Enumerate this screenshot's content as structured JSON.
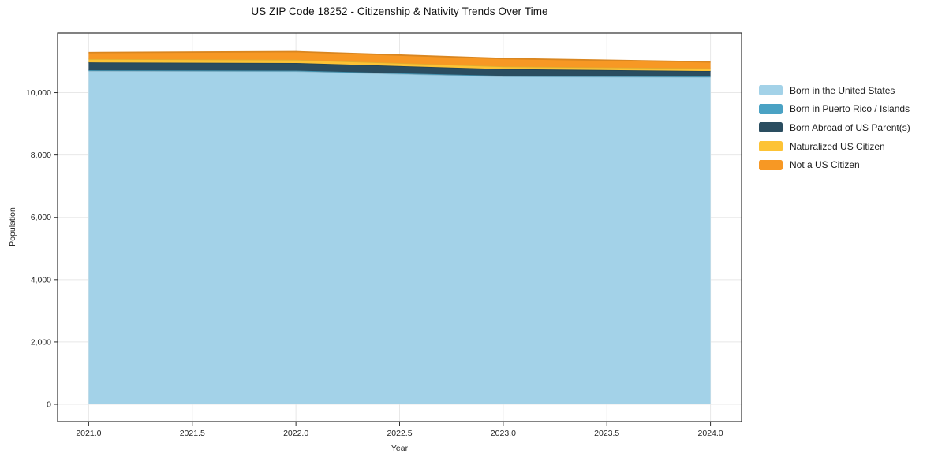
{
  "title": "US ZIP Code 18252 - Citizenship & Nativity Trends Over Time",
  "colors": {
    "background": "#ffffff",
    "grid": "#e8e8e8",
    "spine": "#2e2e2e",
    "tick": "#2e2e2e",
    "tick_label": "#262626",
    "title_text": "#111111"
  },
  "chart_data": {
    "type": "area",
    "stacked": true,
    "title": "US ZIP Code 18252 - Citizenship & Nativity Trends Over Time",
    "xlabel": "Year",
    "ylabel": "Population",
    "x": [
      2021,
      2022,
      2023,
      2024
    ],
    "series": [
      {
        "name": "Born in the United States",
        "color": "#a3d2e8",
        "values": [
          10700,
          10690,
          10520,
          10500
        ]
      },
      {
        "name": "Born in Puerto Rico / Islands",
        "color": "#4aa2c4",
        "values": [
          20,
          20,
          20,
          20
        ]
      },
      {
        "name": "Born Abroad of US Parent(s)",
        "color": "#2a4d60",
        "values": [
          250,
          240,
          215,
          175
        ]
      },
      {
        "name": "Naturalized US Citizen",
        "color": "#fdc335",
        "values": [
          110,
          105,
          85,
          85
        ]
      },
      {
        "name": "Not a US Citizen",
        "color": "#f79824",
        "values": [
          205,
          260,
          255,
          205
        ]
      }
    ],
    "totals": [
      11285,
      11315,
      11095,
      10985
    ],
    "xlim": [
      2020.85,
      2024.15
    ],
    "ylim": [
      -556,
      11910
    ],
    "x_ticks": [
      2021.0,
      2021.5,
      2022.0,
      2022.5,
      2023.0,
      2023.5,
      2024.0
    ],
    "x_tick_labels": [
      "2021.0",
      "2021.5",
      "2022.0",
      "2022.5",
      "2023.0",
      "2023.5",
      "2024.0"
    ],
    "y_ticks": [
      0,
      2000,
      4000,
      6000,
      8000,
      10000
    ],
    "y_tick_labels": [
      "0",
      "2,000",
      "4,000",
      "6,000",
      "8,000",
      "10,000"
    ],
    "grid": true,
    "legend_position": "right-outside"
  }
}
